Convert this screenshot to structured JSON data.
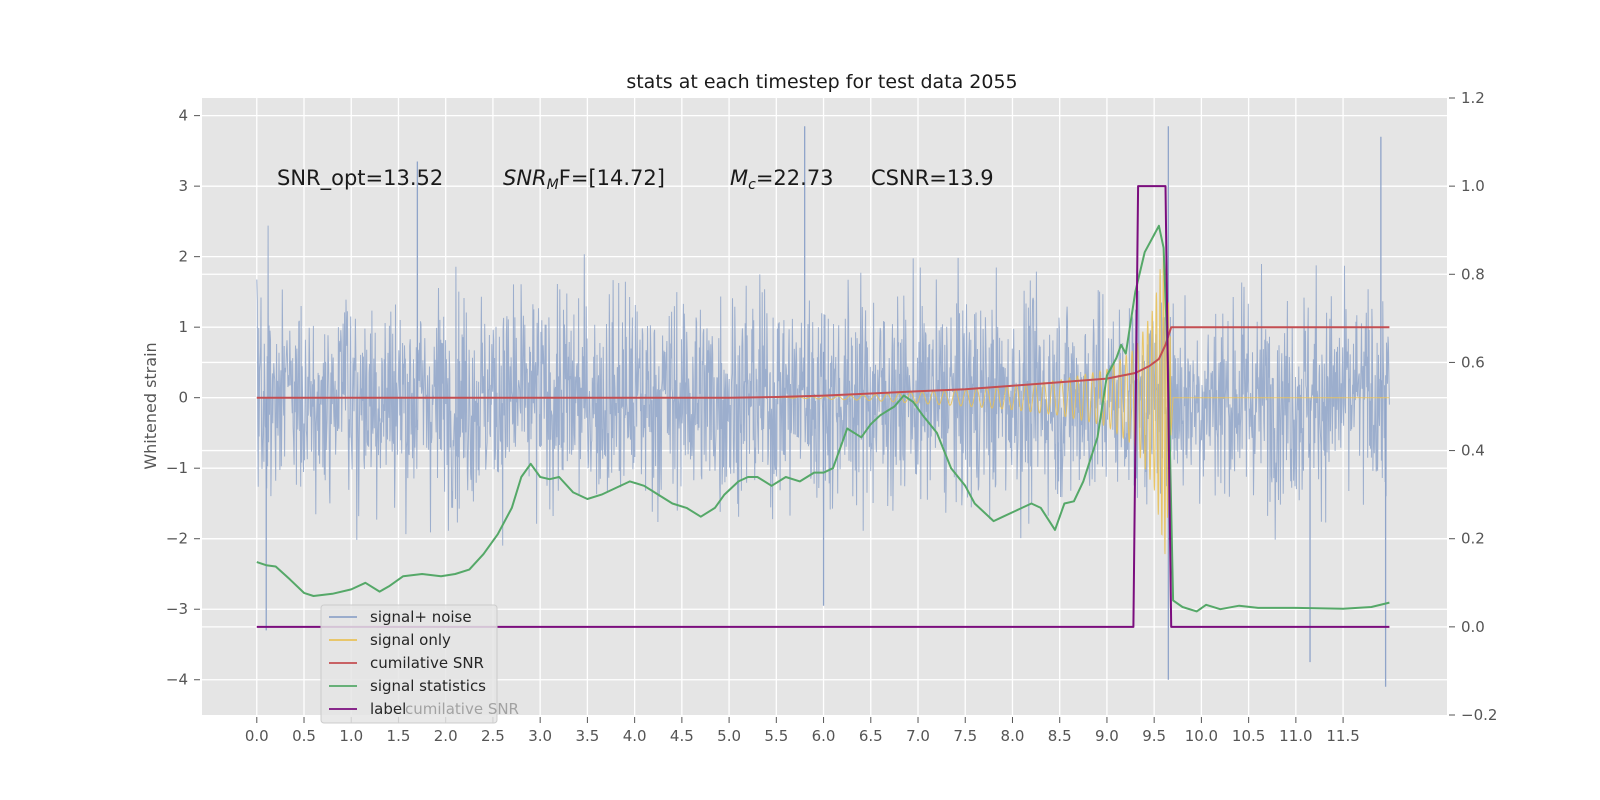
{
  "chart_data": {
    "type": "line",
    "title": "stats at each timestep for test data 2055",
    "ylabel": "Whitened strain",
    "xlabel": "",
    "xlim": [
      -0.58,
      12.6
    ],
    "ylim": [
      -4.5,
      4.25
    ],
    "y2lim": [
      -0.2,
      1.2
    ],
    "grid": true,
    "legend_position": "lower-left",
    "x_ticks": [
      "0.0",
      "0.5",
      "1.0",
      "1.5",
      "2.0",
      "2.5",
      "3.0",
      "3.5",
      "4.0",
      "4.5",
      "5.0",
      "5.5",
      "6.0",
      "6.5",
      "7.0",
      "7.5",
      "8.0",
      "8.5",
      "9.0",
      "9.5",
      "10.0",
      "10.5",
      "11.0",
      "11.5"
    ],
    "x_tick_values": [
      0,
      0.5,
      1,
      1.5,
      2,
      2.5,
      3,
      3.5,
      4,
      4.5,
      5,
      5.5,
      6,
      6.5,
      7,
      7.5,
      8,
      8.5,
      9,
      9.5,
      10,
      10.5,
      11,
      11.5
    ],
    "y_ticks": [
      "−4",
      "−3",
      "−2",
      "−1",
      "0",
      "1",
      "2",
      "3",
      "4"
    ],
    "y_tick_values": [
      -4,
      -3,
      -2,
      -1,
      0,
      1,
      2,
      3,
      4
    ],
    "y2_ticks": [
      "−0.2",
      "0.0",
      "0.2",
      "0.4",
      "0.6",
      "0.8",
      "1.0",
      "1.2"
    ],
    "y2_tick_values": [
      -0.2,
      0,
      0.2,
      0.4,
      0.6,
      0.8,
      1.0,
      1.2
    ],
    "annotations": {
      "snr_opt": "SNR_opt=13.52",
      "snr_mf_main": "SNR",
      "snr_mf_sub": "M",
      "snr_mf_tail": "F=[14.72]",
      "mc_main": "M",
      "mc_sub": "c",
      "mc_tail": "=22.73",
      "csnr": "CSNR=13.9"
    },
    "series": [
      {
        "name": "signal+ noise",
        "color": "#8fa4c9",
        "axis": "left",
        "kind": "noise",
        "x_range": [
          0,
          11.99
        ],
        "band_core": [
          -1.7,
          1.7
        ],
        "extremes": [
          [
            0.1,
            -3.3
          ],
          [
            1.7,
            3.35
          ],
          [
            5.8,
            3.85
          ],
          [
            6.0,
            0.65
          ],
          [
            6.0,
            -2.95
          ],
          [
            9.65,
            3.85
          ],
          [
            9.65,
            -4.0
          ],
          [
            11.15,
            -3.75
          ],
          [
            11.9,
            3.7
          ],
          [
            11.95,
            -4.1
          ]
        ]
      },
      {
        "name": "signal only",
        "color": "#e8c159",
        "axis": "left",
        "kind": "chirp",
        "x_range": [
          5.5,
          11.99
        ],
        "envelope": [
          [
            5.5,
            0.0
          ],
          [
            6.5,
            0.04
          ],
          [
            7.0,
            0.08
          ],
          [
            7.5,
            0.12
          ],
          [
            8.0,
            0.17
          ],
          [
            8.5,
            0.25
          ],
          [
            9.0,
            0.4
          ],
          [
            9.3,
            0.7
          ],
          [
            9.5,
            1.3
          ],
          [
            9.62,
            2.3
          ],
          [
            9.66,
            1.2
          ],
          [
            9.7,
            0.0
          ],
          [
            11.99,
            0.0
          ]
        ]
      },
      {
        "name": "cumilative SNR",
        "color": "#c44e52",
        "axis": "left",
        "x": [
          0,
          1,
          2,
          3,
          4,
          5,
          5.5,
          6,
          6.5,
          7,
          7.5,
          8,
          8.5,
          9,
          9.3,
          9.45,
          9.55,
          9.62,
          9.68,
          9.75,
          10.5,
          11.99
        ],
        "y": [
          0.0,
          0.0,
          0.0,
          0.0,
          0.0,
          0.0,
          0.01,
          0.03,
          0.06,
          0.09,
          0.12,
          0.17,
          0.22,
          0.27,
          0.35,
          0.45,
          0.55,
          0.75,
          1.0,
          1.0,
          1.0,
          1.0
        ]
      },
      {
        "name": "signal statistics",
        "color": "#55a868",
        "axis": "right",
        "x": [
          0,
          0.1,
          0.2,
          0.35,
          0.5,
          0.6,
          0.8,
          1.0,
          1.15,
          1.3,
          1.4,
          1.55,
          1.75,
          1.95,
          2.1,
          2.25,
          2.4,
          2.55,
          2.7,
          2.8,
          2.9,
          3.0,
          3.1,
          3.2,
          3.35,
          3.5,
          3.65,
          3.8,
          3.95,
          4.1,
          4.25,
          4.4,
          4.55,
          4.7,
          4.85,
          4.95,
          5.1,
          5.2,
          5.3,
          5.45,
          5.6,
          5.75,
          5.9,
          6.0,
          6.1,
          6.25,
          6.4,
          6.5,
          6.6,
          6.75,
          6.85,
          6.95,
          7.05,
          7.2,
          7.35,
          7.5,
          7.6,
          7.8,
          7.9,
          8.1,
          8.2,
          8.3,
          8.45,
          8.55,
          8.65,
          8.75,
          8.9,
          9.0,
          9.1,
          9.15,
          9.2,
          9.3,
          9.4,
          9.5,
          9.55,
          9.6,
          9.65,
          9.7,
          9.8,
          9.95,
          10.05,
          10.2,
          10.4,
          10.6,
          11.0,
          11.5,
          11.8,
          11.99
        ],
        "y": [
          0.147,
          0.14,
          0.137,
          0.108,
          0.077,
          0.07,
          0.075,
          0.085,
          0.1,
          0.08,
          0.092,
          0.115,
          0.12,
          0.115,
          0.12,
          0.13,
          0.165,
          0.21,
          0.27,
          0.34,
          0.37,
          0.34,
          0.335,
          0.34,
          0.305,
          0.29,
          0.3,
          0.315,
          0.33,
          0.32,
          0.3,
          0.28,
          0.27,
          0.25,
          0.27,
          0.3,
          0.33,
          0.34,
          0.34,
          0.32,
          0.34,
          0.33,
          0.35,
          0.35,
          0.36,
          0.45,
          0.43,
          0.46,
          0.48,
          0.5,
          0.525,
          0.51,
          0.48,
          0.44,
          0.36,
          0.32,
          0.28,
          0.24,
          0.25,
          0.27,
          0.28,
          0.27,
          0.22,
          0.28,
          0.285,
          0.33,
          0.43,
          0.57,
          0.61,
          0.64,
          0.62,
          0.76,
          0.85,
          0.89,
          0.91,
          0.86,
          0.58,
          0.06,
          0.045,
          0.035,
          0.05,
          0.04,
          0.048,
          0.043,
          0.043,
          0.041,
          0.045,
          0.055
        ]
      },
      {
        "name": "label",
        "color": "#7b0d7e",
        "axis": "right",
        "x": [
          0,
          9.28,
          9.33,
          9.62,
          9.68,
          11.99
        ],
        "y": [
          0,
          0,
          1,
          1,
          0,
          0
        ]
      }
    ],
    "legend": [
      "signal+ noise",
      "signal only",
      "cumilative SNR",
      "signal statistics",
      "label"
    ],
    "legend_ghost_text": "cumilative SNR"
  }
}
